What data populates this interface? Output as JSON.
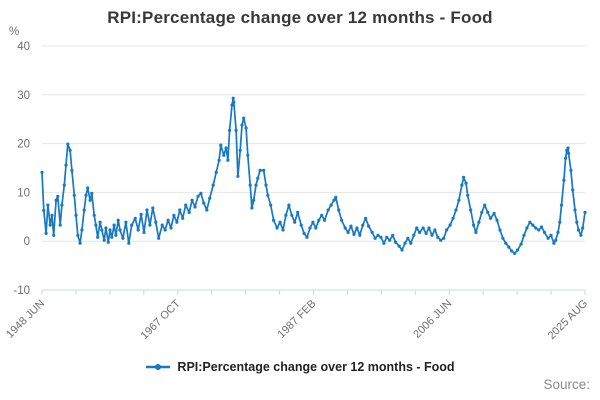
{
  "title": "RPI:Percentage change over 12 months - Food",
  "y_axis": {
    "unit_label": "%",
    "ticks": [
      40,
      30,
      20,
      10,
      0,
      -10
    ]
  },
  "x_axis": {
    "tick_count": 17,
    "labeled_tick_indices": [
      0,
      4,
      8,
      12,
      16
    ],
    "labels": [
      "1948 JUN",
      "1967 OCT",
      "1987 FEB",
      "2006 JUN",
      "2025 AUG"
    ]
  },
  "legend": {
    "label": "RPI:Percentage change over 12 months - Food"
  },
  "source_label": "Source:",
  "colors": {
    "line": "#1778c4",
    "grid": "#e6e6e6",
    "axis_line": "#ccd6eb",
    "text_muted": "#6e6e6e",
    "title_text": "#383838"
  },
  "chart_data": {
    "type": "line",
    "title": "RPI:Percentage change over 12 months - Food",
    "ylabel": "%",
    "ylim": [
      -10,
      40
    ],
    "grid": "horizontal",
    "legend_position": "bottom",
    "x_start": "1948-06",
    "x_end": "2025-08",
    "x_unit": "months since 1948-06",
    "total_months": 926,
    "x_tick_labels": [
      "1948 JUN",
      "1967 OCT",
      "1987 FEB",
      "2006 JUN",
      "2025 AUG"
    ],
    "series": [
      {
        "name": "RPI:Percentage change over 12 months - Food",
        "points": [
          [
            0,
            14.1
          ],
          [
            3,
            6.3
          ],
          [
            7,
            1.6
          ],
          [
            10,
            7.4
          ],
          [
            14,
            3.3
          ],
          [
            17,
            5.3
          ],
          [
            20,
            1.2
          ],
          [
            24,
            8.4
          ],
          [
            27,
            9.2
          ],
          [
            31,
            3.3
          ],
          [
            34,
            7.4
          ],
          [
            38,
            11.5
          ],
          [
            41,
            15.6
          ],
          [
            44,
            19.9
          ],
          [
            48,
            18.6
          ],
          [
            51,
            14.5
          ],
          [
            55,
            9.4
          ],
          [
            58,
            5.3
          ],
          [
            61,
            1.2
          ],
          [
            65,
            -0.4
          ],
          [
            68,
            2.3
          ],
          [
            72,
            6.4
          ],
          [
            75,
            9.4
          ],
          [
            78,
            10.9
          ],
          [
            82,
            8.4
          ],
          [
            85,
            9.8
          ],
          [
            89,
            5.3
          ],
          [
            92,
            3.3
          ],
          [
            95,
            0.8
          ],
          [
            99,
            3.9
          ],
          [
            102,
            2.3
          ],
          [
            106,
            0.2
          ],
          [
            109,
            2.7
          ],
          [
            113,
            -0.2
          ],
          [
            116,
            2.3
          ],
          [
            119,
            0.8
          ],
          [
            123,
            3.3
          ],
          [
            126,
            1.2
          ],
          [
            130,
            4.3
          ],
          [
            133,
            2.3
          ],
          [
            138,
            0.6
          ],
          [
            143,
            3.9
          ],
          [
            148,
            -0.4
          ],
          [
            153,
            3.3
          ],
          [
            159,
            4.7
          ],
          [
            164,
            2.3
          ],
          [
            169,
            5.5
          ],
          [
            174,
            1.8
          ],
          [
            179,
            6.4
          ],
          [
            184,
            3.3
          ],
          [
            189,
            6.8
          ],
          [
            194,
            3.9
          ],
          [
            199,
            0.6
          ],
          [
            205,
            3.3
          ],
          [
            210,
            2.3
          ],
          [
            215,
            4.3
          ],
          [
            220,
            2.7
          ],
          [
            225,
            5.3
          ],
          [
            230,
            3.9
          ],
          [
            235,
            6.4
          ],
          [
            240,
            4.7
          ],
          [
            245,
            7.4
          ],
          [
            251,
            5.9
          ],
          [
            256,
            8.4
          ],
          [
            261,
            7.0
          ],
          [
            266,
            9.2
          ],
          [
            271,
            9.8
          ],
          [
            276,
            7.8
          ],
          [
            281,
            6.4
          ],
          [
            286,
            8.8
          ],
          [
            292,
            11.5
          ],
          [
            297,
            14.1
          ],
          [
            302,
            16.6
          ],
          [
            305,
            19.7
          ],
          [
            310,
            17.6
          ],
          [
            314,
            19.1
          ],
          [
            317,
            16.6
          ],
          [
            320,
            22.7
          ],
          [
            324,
            27.9
          ],
          [
            326,
            29.3
          ],
          [
            327,
            28.5
          ],
          [
            331,
            22.7
          ],
          [
            334,
            13.3
          ],
          [
            338,
            18.6
          ],
          [
            341,
            23.8
          ],
          [
            344,
            25.2
          ],
          [
            348,
            23.2
          ],
          [
            351,
            17.6
          ],
          [
            355,
            11.5
          ],
          [
            358,
            6.8
          ],
          [
            361,
            8.4
          ],
          [
            365,
            11.5
          ],
          [
            368,
            12.9
          ],
          [
            372,
            14.5
          ],
          [
            378,
            14.5
          ],
          [
            382,
            11.5
          ],
          [
            385,
            9.4
          ],
          [
            390,
            7.4
          ],
          [
            395,
            4.3
          ],
          [
            401,
            2.7
          ],
          [
            406,
            3.9
          ],
          [
            411,
            2.3
          ],
          [
            416,
            5.3
          ],
          [
            421,
            7.4
          ],
          [
            426,
            5.3
          ],
          [
            431,
            3.9
          ],
          [
            436,
            5.9
          ],
          [
            442,
            3.3
          ],
          [
            447,
            1.6
          ],
          [
            452,
            0.8
          ],
          [
            457,
            2.7
          ],
          [
            462,
            3.9
          ],
          [
            467,
            2.7
          ],
          [
            472,
            4.3
          ],
          [
            477,
            5.3
          ],
          [
            482,
            4.3
          ],
          [
            488,
            6.4
          ],
          [
            493,
            7.4
          ],
          [
            498,
            8.4
          ],
          [
            501,
            9.0
          ],
          [
            506,
            6.4
          ],
          [
            511,
            4.3
          ],
          [
            517,
            2.7
          ],
          [
            522,
            1.8
          ],
          [
            527,
            3.1
          ],
          [
            532,
            1.4
          ],
          [
            537,
            2.7
          ],
          [
            542,
            1.2
          ],
          [
            547,
            3.3
          ],
          [
            552,
            4.7
          ],
          [
            557,
            3.1
          ],
          [
            563,
            1.8
          ],
          [
            568,
            0.6
          ],
          [
            573,
            1.2
          ],
          [
            578,
            0.8
          ],
          [
            583,
            -0.4
          ],
          [
            588,
            0.8
          ],
          [
            593,
            0.2
          ],
          [
            598,
            1.2
          ],
          [
            603,
            -0.2
          ],
          [
            609,
            -1.0
          ],
          [
            614,
            -1.8
          ],
          [
            619,
            -0.4
          ],
          [
            624,
            0.6
          ],
          [
            629,
            -0.4
          ],
          [
            634,
            1.2
          ],
          [
            639,
            2.7
          ],
          [
            644,
            1.8
          ],
          [
            650,
            2.7
          ],
          [
            655,
            1.6
          ],
          [
            660,
            2.7
          ],
          [
            665,
            1.2
          ],
          [
            670,
            2.3
          ],
          [
            675,
            0.8
          ],
          [
            680,
            0.2
          ],
          [
            685,
            0.6
          ],
          [
            690,
            2.3
          ],
          [
            696,
            3.3
          ],
          [
            701,
            4.7
          ],
          [
            706,
            6.4
          ],
          [
            711,
            8.4
          ],
          [
            716,
            11.5
          ],
          [
            719,
            13.1
          ],
          [
            723,
            11.9
          ],
          [
            726,
            9.4
          ],
          [
            731,
            6.4
          ],
          [
            736,
            3.3
          ],
          [
            740,
            1.8
          ],
          [
            745,
            3.9
          ],
          [
            750,
            5.9
          ],
          [
            755,
            7.4
          ],
          [
            760,
            5.9
          ],
          [
            765,
            4.7
          ],
          [
            771,
            5.7
          ],
          [
            776,
            4.3
          ],
          [
            781,
            2.3
          ],
          [
            786,
            0.6
          ],
          [
            791,
            -0.4
          ],
          [
            796,
            -1.2
          ],
          [
            801,
            -2.0
          ],
          [
            806,
            -2.5
          ],
          [
            811,
            -1.8
          ],
          [
            817,
            -0.6
          ],
          [
            822,
            1.2
          ],
          [
            827,
            2.7
          ],
          [
            832,
            3.9
          ],
          [
            837,
            3.3
          ],
          [
            842,
            2.7
          ],
          [
            847,
            2.3
          ],
          [
            852,
            2.9
          ],
          [
            857,
            1.8
          ],
          [
            863,
            0.6
          ],
          [
            868,
            1.2
          ],
          [
            873,
            -0.4
          ],
          [
            876,
            0.2
          ],
          [
            880,
            1.8
          ],
          [
            883,
            3.9
          ],
          [
            886,
            7.4
          ],
          [
            890,
            12.5
          ],
          [
            893,
            17.0
          ],
          [
            895,
            18.6
          ],
          [
            897,
            19.1
          ],
          [
            898,
            18.0
          ],
          [
            902,
            14.5
          ],
          [
            905,
            10.5
          ],
          [
            909,
            6.4
          ],
          [
            912,
            3.9
          ],
          [
            915,
            2.3
          ],
          [
            919,
            1.2
          ],
          [
            922,
            2.7
          ],
          [
            926,
            5.9
          ]
        ]
      }
    ]
  }
}
